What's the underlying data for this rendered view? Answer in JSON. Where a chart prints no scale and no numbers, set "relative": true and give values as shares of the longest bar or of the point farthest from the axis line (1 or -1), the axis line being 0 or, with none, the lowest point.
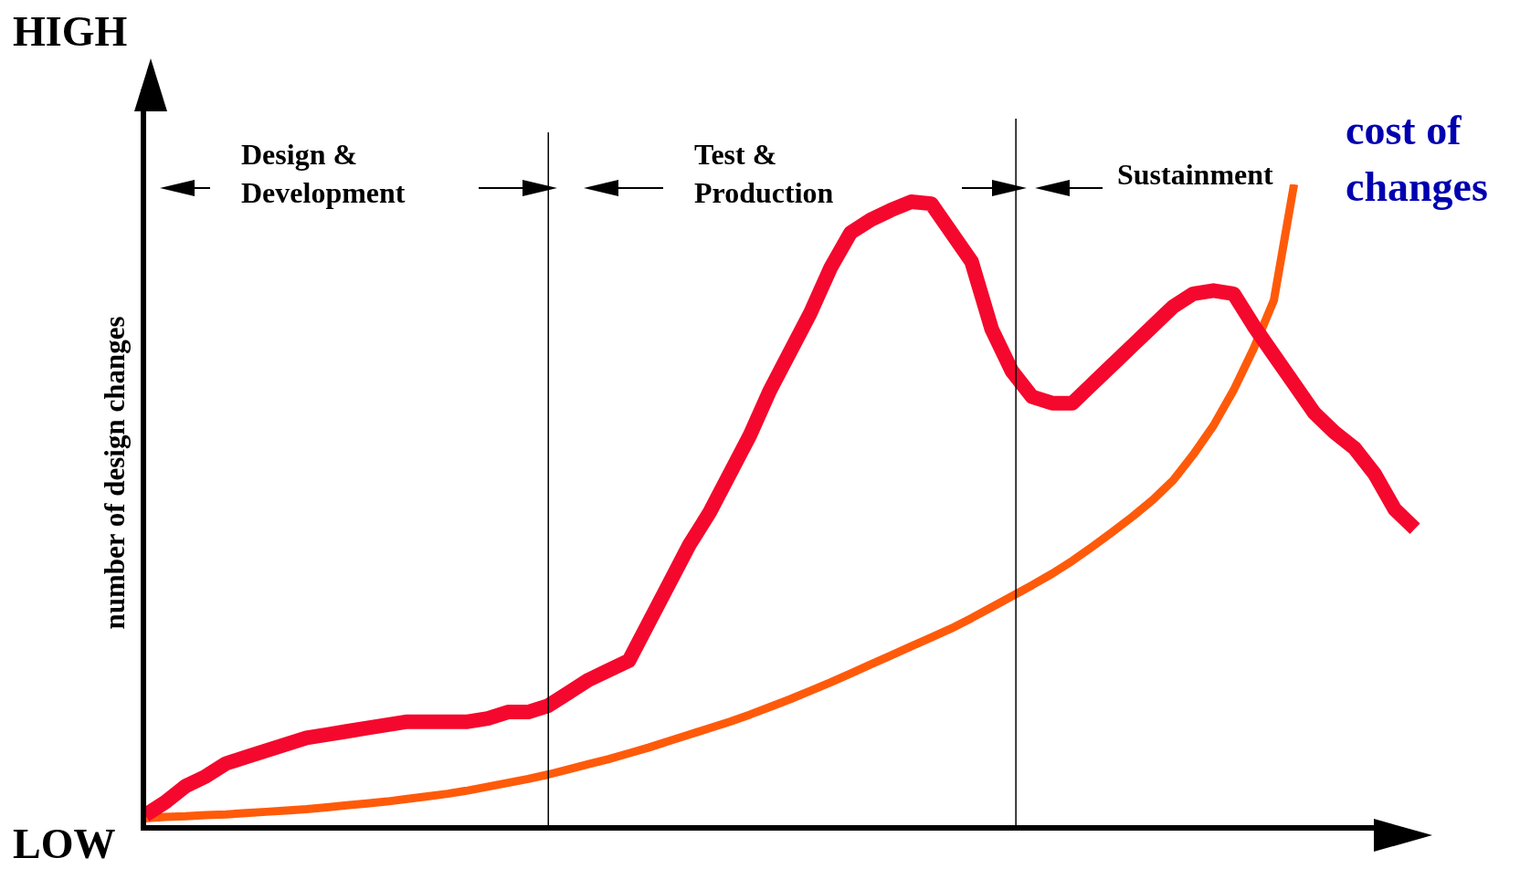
{
  "chart_data": {
    "type": "line",
    "relative": true,
    "ylabel": "number of design changes",
    "categories": [
      null,
      null,
      null,
      null,
      null,
      null,
      null,
      null,
      null,
      null,
      null,
      null,
      null,
      null,
      null,
      null,
      null,
      null,
      null,
      null,
      null,
      null,
      null,
      null,
      null,
      null,
      null,
      null,
      null,
      null,
      null,
      null,
      null,
      null,
      null,
      null,
      null,
      null,
      null,
      null,
      null,
      null,
      null,
      null,
      null,
      null,
      null,
      null,
      null,
      null,
      null,
      null,
      null,
      null,
      null,
      null,
      null,
      null,
      null,
      null,
      null,
      null,
      null,
      null
    ],
    "series": [
      {
        "color": "#f5082d",
        "values": [
          0.02,
          0.04,
          0.065,
          0.08,
          0.1,
          0.11,
          0.12,
          0.13,
          0.14,
          0.145,
          0.15,
          0.155,
          0.16,
          0.165,
          0.165,
          0.165,
          0.165,
          0.17,
          0.18,
          0.18,
          0.19,
          0.21,
          0.23,
          0.245,
          0.26,
          0.32,
          0.38,
          0.44,
          0.49,
          0.55,
          0.61,
          0.68,
          0.74,
          0.8,
          0.87,
          0.925,
          0.945,
          0.96,
          0.973,
          0.97,
          0.925,
          0.88,
          0.775,
          0.71,
          0.67,
          0.66,
          0.66,
          0.69,
          0.72,
          0.75,
          0.78,
          0.81,
          0.83,
          0.835,
          0.83,
          0.78,
          0.735,
          0.69,
          0.645,
          0.615,
          0.59,
          0.55,
          0.495,
          0.465
        ]
      },
      {
        "name": "cost of changes",
        "color": "#ff5a0a",
        "values": [
          0.015,
          0.017,
          0.018,
          0.02,
          0.021,
          0.023,
          0.025,
          0.027,
          0.029,
          0.032,
          0.035,
          0.038,
          0.041,
          0.045,
          0.049,
          0.053,
          0.058,
          0.064,
          0.07,
          0.076,
          0.083,
          0.091,
          0.099,
          0.107,
          0.116,
          0.125,
          0.135,
          0.145,
          0.155,
          0.165,
          0.176,
          0.188,
          0.2,
          0.213,
          0.226,
          0.24,
          0.254,
          0.268,
          0.282,
          0.296,
          0.31,
          0.326,
          0.343,
          0.36,
          0.377,
          0.395,
          0.415,
          0.437,
          0.46,
          0.484,
          0.51,
          0.54,
          0.58,
          0.625,
          0.68,
          0.745,
          0.82,
          1.0,
          null,
          null,
          null,
          null,
          null,
          null
        ]
      }
    ],
    "annotations": [
      "HIGH",
      "LOW",
      "Design & Development",
      "Test & Production",
      "Sustainment"
    ],
    "legend": false
  }
}
